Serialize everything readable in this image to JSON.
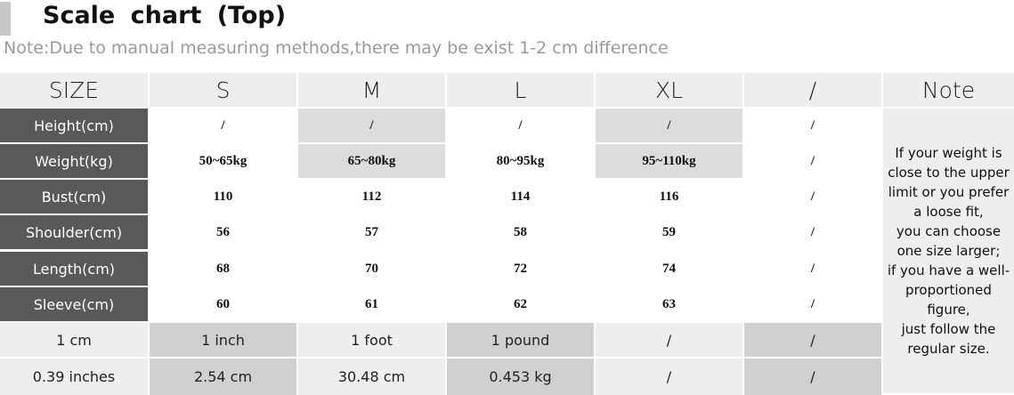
{
  "header": {
    "title": "Scale chart (Top)",
    "note": "Note:Due to manual measuring methods,there may be exist 1-2 cm difference"
  },
  "table": {
    "columns": [
      "SIZE",
      "S",
      "M",
      "L",
      "XL",
      "/",
      "Note"
    ],
    "rows": [
      [
        "Height(cm)",
        "/",
        "/",
        "/",
        "/",
        "/"
      ],
      [
        "Weight(kg)",
        "50~65kg",
        "65~80kg",
        "80~95kg",
        "95~110kg",
        "/"
      ],
      [
        "Bust(cm)",
        "110",
        "112",
        "114",
        "116",
        "/"
      ],
      [
        "Shoulder(cm)",
        "56",
        "57",
        "58",
        "59",
        "/"
      ],
      [
        "Length(cm)",
        "68",
        "70",
        "72",
        "74",
        "/"
      ],
      [
        "Sleeve(cm)",
        "60",
        "61",
        "62",
        "63",
        "/"
      ]
    ],
    "conversion_rows": [
      [
        "1 cm",
        "1 inch",
        "1 foot",
        "1 pound",
        "/",
        "/"
      ],
      [
        "0.39 inches",
        "2.54 cm",
        "30.48 cm",
        "0.453 kg",
        "/",
        "/"
      ]
    ],
    "note_lines": [
      "If your weight is",
      "close to the upper",
      "limit or you prefer",
      "a loose fit,",
      "you can choose",
      "one size larger;",
      "if you have a well-",
      "proportioned",
      "figure,",
      "just follow the",
      "regular size."
    ]
  }
}
